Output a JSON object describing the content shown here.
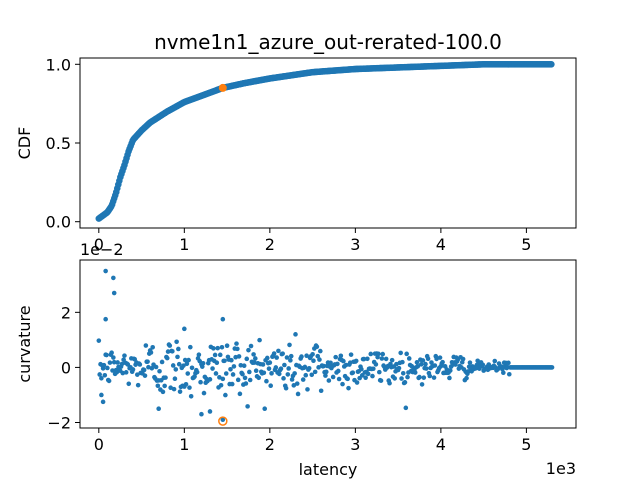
{
  "chart_data": [
    {
      "type": "scatter",
      "title": "nvme1n1_azure_out-rerated-100.0",
      "xlabel": "",
      "ylabel": "CDF",
      "xlim": [
        -0.22,
        5.58
      ],
      "ylim": [
        -0.04,
        1.04
      ],
      "xticks": [
        0,
        1,
        2,
        3,
        4,
        5
      ],
      "yticks": [
        0.0,
        0.5,
        1.0
      ],
      "xtick_labels": [
        "0",
        "1",
        "2",
        "3",
        "4",
        "5"
      ],
      "ytick_labels": [
        "0.0",
        "0.5",
        "1.0"
      ],
      "x_offset_label": "",
      "y_offset_label": "",
      "series_color": "#1f77b4",
      "highlight_color": "#ff7f0e",
      "curve_knots": [
        [
          0.0,
          0.02
        ],
        [
          0.1,
          0.06
        ],
        [
          0.15,
          0.1
        ],
        [
          0.2,
          0.18
        ],
        [
          0.25,
          0.28
        ],
        [
          0.3,
          0.36
        ],
        [
          0.35,
          0.45
        ],
        [
          0.4,
          0.52
        ],
        [
          0.5,
          0.58
        ],
        [
          0.6,
          0.63
        ],
        [
          0.8,
          0.7
        ],
        [
          1.0,
          0.76
        ],
        [
          1.2,
          0.8
        ],
        [
          1.45,
          0.85
        ],
        [
          1.7,
          0.88
        ],
        [
          2.0,
          0.91
        ],
        [
          2.5,
          0.95
        ],
        [
          3.0,
          0.97
        ],
        [
          3.5,
          0.98
        ],
        [
          4.0,
          0.99
        ],
        [
          4.5,
          1.0
        ],
        [
          5.3,
          1.0
        ]
      ],
      "highlight_point": [
        1.45,
        0.85
      ]
    },
    {
      "type": "scatter",
      "title": "",
      "xlabel": "latency",
      "ylabel": "curvature",
      "xlim": [
        -0.22,
        5.58
      ],
      "ylim": [
        -2.2,
        3.9
      ],
      "xticks": [
        0,
        1,
        2,
        3,
        4,
        5
      ],
      "yticks": [
        -2,
        0,
        2
      ],
      "xtick_labels": [
        "0",
        "1",
        "2",
        "3",
        "4",
        "5"
      ],
      "ytick_labels": [
        "−2",
        "0",
        "2"
      ],
      "x_offset_label": "1e3",
      "y_offset_label": "1e−2",
      "series_color": "#1f77b4",
      "highlight_color": "#ff7f0e",
      "notable_points": [
        [
          0.08,
          3.5
        ],
        [
          0.17,
          3.25
        ],
        [
          0.18,
          2.7
        ],
        [
          0.08,
          1.75
        ],
        [
          0.03,
          -1.0
        ],
        [
          0.05,
          -1.25
        ],
        [
          1.45,
          1.75
        ],
        [
          1.0,
          1.4
        ],
        [
          0.7,
          -1.5
        ],
        [
          1.2,
          -1.7
        ],
        [
          1.3,
          -1.6
        ],
        [
          1.45,
          -1.9
        ]
      ],
      "highlight_point": [
        1.45,
        -1.95
      ]
    }
  ]
}
